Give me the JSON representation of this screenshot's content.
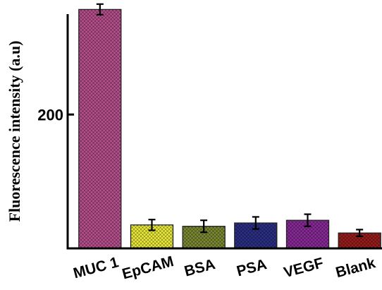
{
  "chart_data": {
    "type": "bar",
    "title": "",
    "xlabel": "",
    "ylabel": "Fluorescence intensity (a.u)",
    "ylim": [
      0,
      400
    ],
    "yticks": [
      200,
      400
    ],
    "grid": false,
    "categories": [
      "MUC 1",
      "EpCAM",
      "BSA",
      "PSA",
      "VEGF",
      "Blank"
    ],
    "values": [
      357,
      35,
      33,
      38,
      42,
      23
    ],
    "errors": [
      8,
      8,
      9,
      9,
      9,
      5
    ],
    "colors": [
      "#b8508f",
      "#ecec3a",
      "#7d8a32",
      "#2c2f86",
      "#8a2a9a",
      "#9a1c1c"
    ]
  }
}
